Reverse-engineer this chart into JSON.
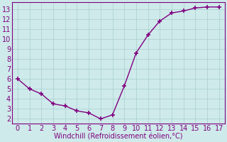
{
  "x": [
    0,
    1,
    2,
    3,
    4,
    5,
    6,
    7,
    8,
    9,
    10,
    11,
    12,
    13,
    14,
    15,
    16,
    17
  ],
  "y": [
    6.0,
    5.0,
    4.5,
    3.5,
    3.3,
    2.8,
    2.6,
    2.0,
    2.4,
    5.3,
    8.6,
    10.4,
    11.8,
    12.6,
    12.8,
    13.1,
    13.2,
    13.2
  ],
  "line_color": "#800080",
  "marker": "+",
  "marker_size": 5,
  "marker_lw": 1.2,
  "xlabel": "Windchill (Refroidissement éolien,°C)",
  "xlim": [
    -0.5,
    17.5
  ],
  "ylim": [
    1.5,
    13.7
  ],
  "yticks": [
    2,
    3,
    4,
    5,
    6,
    7,
    8,
    9,
    10,
    11,
    12,
    13
  ],
  "xticks": [
    0,
    1,
    2,
    3,
    4,
    5,
    6,
    7,
    8,
    9,
    10,
    11,
    12,
    13,
    14,
    15,
    16,
    17
  ],
  "bg_color": "#ceeaea",
  "grid_color": "#aacece",
  "axis_color": "#800080",
  "label_color": "#800080",
  "tick_color": "#800080",
  "xlabel_fontsize": 7,
  "tick_fontsize": 7,
  "linewidth": 1.0
}
